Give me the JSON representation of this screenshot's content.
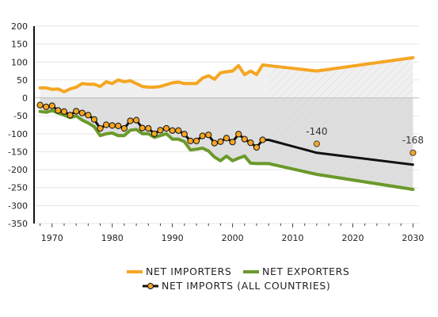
{
  "chart_data": {
    "type": "line",
    "title": "",
    "xlabel": "",
    "ylabel": "",
    "xlim": [
      1967,
      2031
    ],
    "ylim": [
      -350,
      200
    ],
    "x_ticks": [
      1970,
      1980,
      1990,
      2000,
      2010,
      2020,
      2030
    ],
    "y_ticks": [
      200,
      150,
      100,
      50,
      0,
      -50,
      -100,
      -150,
      -200,
      -250,
      -300,
      -350
    ],
    "projection_start": 2006,
    "grid": true,
    "legend_position": "bottom-center",
    "series": [
      {
        "name": "NET IMPORTERS",
        "color": "#f5a623",
        "x": [
          1968,
          1969,
          1970,
          1971,
          1972,
          1973,
          1974,
          1975,
          1976,
          1977,
          1978,
          1979,
          1980,
          1981,
          1982,
          1983,
          1984,
          1985,
          1986,
          1987,
          1988,
          1989,
          1990,
          1991,
          1992,
          1993,
          1994,
          1995,
          1996,
          1997,
          1998,
          1999,
          2000,
          2001,
          2002,
          2003,
          2004,
          2005,
          2006,
          2014,
          2030
        ],
        "values": [
          28,
          28,
          24,
          25,
          17,
          25,
          30,
          40,
          38,
          38,
          32,
          45,
          40,
          50,
          45,
          48,
          40,
          32,
          30,
          30,
          32,
          37,
          42,
          44,
          40,
          40,
          40,
          55,
          62,
          52,
          70,
          73,
          75,
          90,
          65,
          75,
          65,
          92,
          90,
          75,
          112
        ]
      },
      {
        "name": "NET EXPORTERS",
        "color": "#6a9a2a",
        "x": [
          1968,
          1969,
          1970,
          1971,
          1972,
          1973,
          1974,
          1975,
          1976,
          1977,
          1978,
          1979,
          1980,
          1981,
          1982,
          1983,
          1984,
          1985,
          1986,
          1987,
          1988,
          1989,
          1990,
          1991,
          1992,
          1993,
          1994,
          1995,
          1996,
          1997,
          1998,
          1999,
          2000,
          2001,
          2002,
          2003,
          2004,
          2005,
          2006,
          2014,
          2030
        ],
        "values": [
          -38,
          -40,
          -35,
          -42,
          -48,
          -55,
          -50,
          -62,
          -70,
          -80,
          -105,
          -100,
          -98,
          -105,
          -105,
          -90,
          -88,
          -100,
          -100,
          -110,
          -105,
          -100,
          -115,
          -115,
          -122,
          -145,
          -143,
          -140,
          -148,
          -165,
          -175,
          -162,
          -175,
          -168,
          -162,
          -182,
          -183,
          -183,
          -183,
          -213,
          -255
        ]
      },
      {
        "name": "NET IMPORTS (ALL COUNTRIES)",
        "color": "#111111",
        "marker_color": "#f5a623",
        "x": [
          1968,
          1969,
          1970,
          1971,
          1972,
          1973,
          1974,
          1975,
          1976,
          1977,
          1978,
          1979,
          1980,
          1981,
          1982,
          1983,
          1984,
          1985,
          1986,
          1987,
          1988,
          1989,
          1990,
          1991,
          1992,
          1993,
          1994,
          1995,
          1996,
          1997,
          1998,
          1999,
          2000,
          2001,
          2002,
          2003,
          2004,
          2005,
          2006,
          2014,
          2030
        ],
        "values": [
          -20,
          -25,
          -22,
          -35,
          -38,
          -48,
          -37,
          -42,
          -48,
          -60,
          -85,
          -75,
          -77,
          -78,
          -85,
          -64,
          -62,
          -84,
          -85,
          -100,
          -90,
          -85,
          -91,
          -91,
          -101,
          -120,
          -120,
          -106,
          -103,
          -126,
          -122,
          -112,
          -123,
          -101,
          -115,
          -125,
          -138,
          -117,
          -117,
          -153,
          -186
        ]
      },
      {
        "name": "",
        "color": "#f5a623",
        "markers_only": true,
        "x": [
          2014,
          2030
        ],
        "values": [
          -128,
          -153
        ]
      }
    ],
    "annotations": [
      {
        "text": "-140",
        "x": 2014,
        "y": -103
      },
      {
        "text": "-168",
        "x": 2030,
        "y": -127
      }
    ]
  }
}
